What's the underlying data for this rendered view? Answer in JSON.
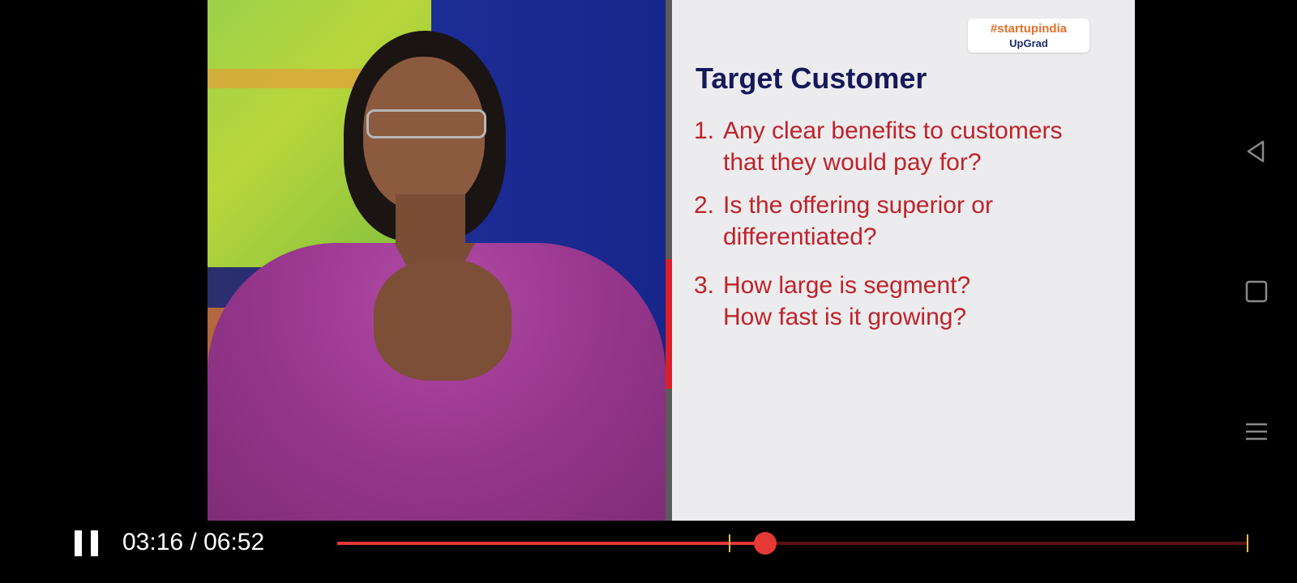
{
  "slide": {
    "logo_line1": "#startupindia",
    "logo_line2": "UpGrad",
    "title": "Target Customer",
    "points": [
      {
        "num": "1.",
        "lines": [
          "Any clear benefits to customers",
          "that they would pay for?"
        ]
      },
      {
        "num": "2.",
        "lines": [
          "Is the offering superior or",
          "differentiated?"
        ]
      },
      {
        "num": "3.",
        "lines": [
          "How large is segment?",
          "How fast is it growing?"
        ]
      }
    ]
  },
  "player": {
    "time_display": "03:16 / 06:52",
    "progress": 0.47,
    "chapter_marker": 0.43,
    "end_marker": 1.0,
    "colors": {
      "played": "#e53935",
      "track": "#5a1414",
      "marker": "#e8c04a"
    }
  },
  "icons": {
    "pause": "pause-icon",
    "back": "nav-back-icon",
    "home": "nav-home-icon",
    "menu": "nav-menu-icon"
  }
}
